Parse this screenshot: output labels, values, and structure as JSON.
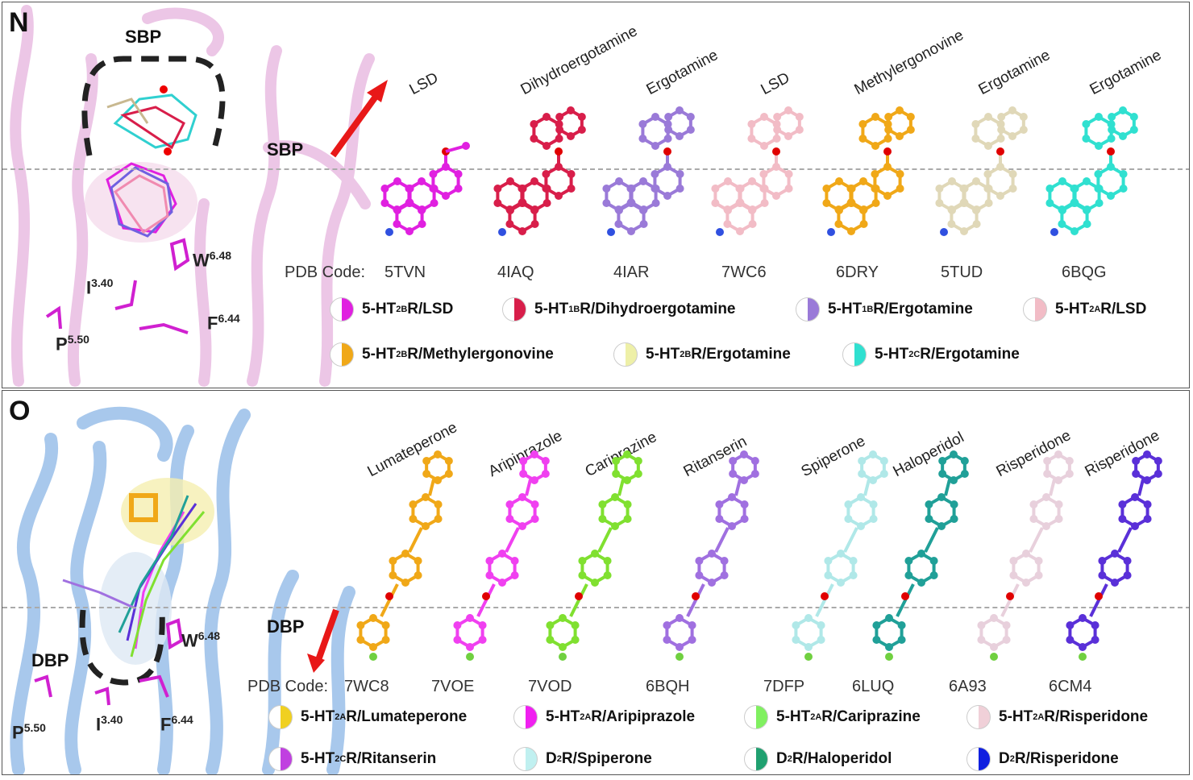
{
  "panelN": {
    "letter": "N",
    "pocket_top": "SBP",
    "pocket_side": "SBP",
    "residues": [
      {
        "name": "W",
        "pos": "6.48"
      },
      {
        "name": "I",
        "pos": "3.40"
      },
      {
        "name": "F",
        "pos": "6.44"
      },
      {
        "name": "P",
        "pos": "5.50"
      }
    ],
    "code_prefix": "PDB Code:",
    "ligands": [
      {
        "name": "LSD",
        "code": "5TVN",
        "color": "#e020e0"
      },
      {
        "name": "Dihydroergotamine",
        "code": "4IAQ",
        "color": "#d81e4a"
      },
      {
        "name": "Ergotamine",
        "code": "4IAR",
        "color": "#9a7ad8"
      },
      {
        "name": "LSD",
        "code": "7WC6",
        "color": "#f2bcc6"
      },
      {
        "name": "Methylergonovine",
        "code": "6DRY",
        "color": "#f0a818"
      },
      {
        "name": "Ergotamine",
        "code": "5TUD",
        "color": "#e0d8b8"
      },
      {
        "name": "Ergotamine",
        "code": "6BQG",
        "color": "#30e0d0"
      }
    ],
    "legend": [
      {
        "pre": "5-HT",
        "sub": "2B",
        "post": "R/LSD",
        "color": "#e020e0"
      },
      {
        "pre": "5-HT",
        "sub": "1B",
        "post": "R/Dihydroergotamine",
        "color": "#d81e4a"
      },
      {
        "pre": "5-HT",
        "sub": "1B",
        "post": "R/Ergotamine",
        "color": "#9a7ad8"
      },
      {
        "pre": "5-HT",
        "sub": "2A",
        "post": "R/LSD",
        "color": "#f2bcc6"
      },
      {
        "pre": "5-HT",
        "sub": "2B",
        "post": "R/Methylergonovine",
        "color": "#f0a818"
      },
      {
        "pre": "5-HT",
        "sub": "2B",
        "post": "R/Ergotamine",
        "color": "#eef0a8"
      },
      {
        "pre": "5-HT",
        "sub": "2C",
        "post": "R/Ergotamine",
        "color": "#30e0d0"
      }
    ]
  },
  "panelO": {
    "letter": "O",
    "pocket_side": "DBP",
    "pocket_bottom": "DBP",
    "residues": [
      {
        "name": "W",
        "pos": "6.48"
      },
      {
        "name": "P",
        "pos": "5.50"
      },
      {
        "name": "I",
        "pos": "3.40"
      },
      {
        "name": "F",
        "pos": "6.44"
      }
    ],
    "code_prefix": "PDB Code:",
    "ligands": [
      {
        "name": "Lumateperone",
        "code": "7WC8",
        "color": "#f0a818"
      },
      {
        "name": "Aripiprazole",
        "code": "7VOE",
        "color": "#f040f0"
      },
      {
        "name": "Cariprazine",
        "code": "7VOD",
        "color": "#80e030"
      },
      {
        "name": "Ritanserin",
        "code": "6BQH",
        "color": "#a070e0"
      },
      {
        "name": "Spiperone",
        "code": "7DFP",
        "color": "#b0e8e8"
      },
      {
        "name": "Haloperidol",
        "code": "6LUQ",
        "color": "#20a098"
      },
      {
        "name": "Risperidone",
        "code": "6A93",
        "color": "#e8d0dc"
      },
      {
        "name": "Risperidone",
        "code": "6CM4",
        "color": "#5a30d8"
      }
    ],
    "legend": [
      {
        "pre": "5-HT",
        "sub": "2A",
        "post": "R/Lumateperone",
        "color": "#f0d020"
      },
      {
        "pre": "5-HT",
        "sub": "2A",
        "post": "R/Aripiprazole",
        "color": "#f020f0"
      },
      {
        "pre": "5-HT",
        "sub": "2A",
        "post": "R/Cariprazine",
        "color": "#80f060"
      },
      {
        "pre": "5-HT",
        "sub": "2A",
        "post": "R/Risperidone",
        "color": "#f0d0d8"
      },
      {
        "pre": "5-HT",
        "sub": "2C",
        "post": "R/Ritanserin",
        "color": "#c040e0"
      },
      {
        "pre": "D",
        "sub": "2",
        "post": "R/Spiperone",
        "color": "#c0f0f0"
      },
      {
        "pre": "D",
        "sub": "2",
        "post": "R/Haloperidol",
        "color": "#20a070"
      },
      {
        "pre": "D",
        "sub": "2",
        "post": "R/Risperidone",
        "color": "#1020e0"
      }
    ]
  }
}
